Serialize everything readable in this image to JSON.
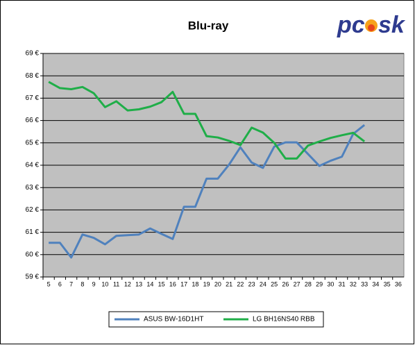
{
  "chart_data": {
    "type": "line",
    "title": "Blu-ray",
    "logo": [
      "pc",
      "sk"
    ],
    "categories": [
      5,
      6,
      7,
      8,
      9,
      10,
      11,
      12,
      13,
      14,
      15,
      16,
      17,
      18,
      19,
      20,
      21,
      22,
      23,
      24,
      25,
      26,
      27,
      28,
      29,
      30,
      31,
      32,
      33,
      34,
      35,
      36
    ],
    "series": [
      {
        "name": "ASUS BW-16D1HT",
        "color": "#4f81bd",
        "values": [
          60.53,
          60.53,
          59.87,
          60.9,
          60.75,
          60.46,
          60.84,
          60.87,
          60.9,
          61.17,
          60.93,
          60.7,
          62.14,
          62.14,
          63.4,
          63.4,
          64.03,
          64.8,
          64.12,
          63.88,
          64.83,
          65.02,
          65.02,
          64.5,
          63.97,
          64.2,
          64.38,
          65.4,
          65.8,
          null,
          null,
          null
        ]
      },
      {
        "name": "LG BH16NS40 RBB",
        "color": "#1fae48",
        "values": [
          67.73,
          67.45,
          67.4,
          67.5,
          67.22,
          66.6,
          66.86,
          66.45,
          66.5,
          66.62,
          66.82,
          67.28,
          66.3,
          66.3,
          65.3,
          65.24,
          65.09,
          64.9,
          65.68,
          65.46,
          65.0,
          64.3,
          64.3,
          64.88,
          65.06,
          65.22,
          65.34,
          65.45,
          65.06,
          null,
          null,
          null
        ]
      }
    ],
    "ylim": [
      59,
      69
    ],
    "yticks": [
      {
        "value": 59,
        "label": "59 €"
      },
      {
        "value": 60,
        "label": "60 €"
      },
      {
        "value": 61,
        "label": "61 €"
      },
      {
        "value": 62,
        "label": "62 €"
      },
      {
        "value": 63,
        "label": "63 €"
      },
      {
        "value": 64,
        "label": "64 €"
      },
      {
        "value": 65,
        "label": "65 €"
      },
      {
        "value": 66,
        "label": "66 €"
      },
      {
        "value": 67,
        "label": "67 €"
      },
      {
        "value": 68,
        "label": "68 €"
      },
      {
        "value": 69,
        "label": "69 €"
      }
    ],
    "grid": true,
    "plot_background": "#c0c0c0",
    "legend": "bottom"
  }
}
